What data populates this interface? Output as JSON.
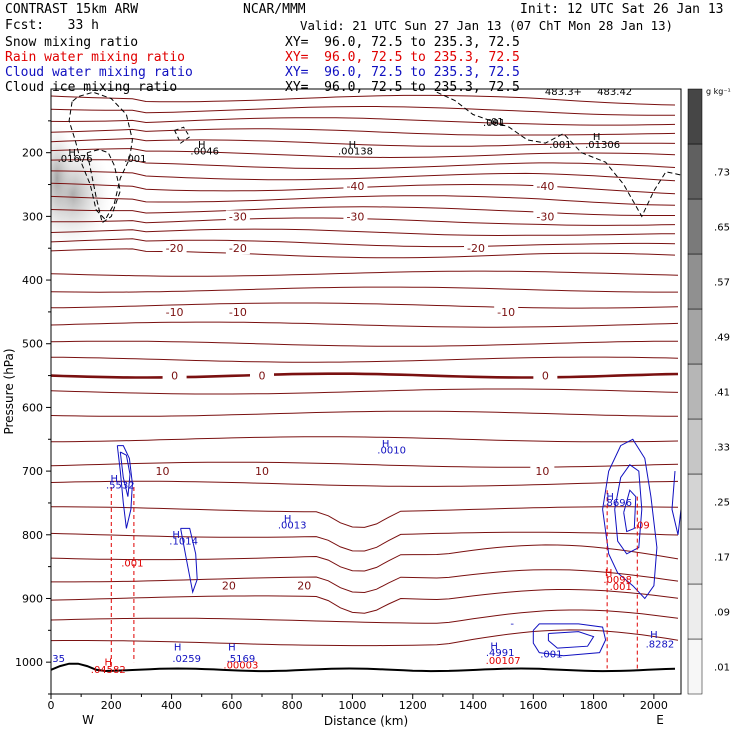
{
  "header": {
    "model": "CONTRAST 15km ARW",
    "forecast": "Fcst:   33 h",
    "center": "NCAR/MMM",
    "init": "Init: 12 UTC Sat 26 Jan 13",
    "valid": "Valid: 21 UTC Sun 27 Jan 13 (07 ChT Mon 28 Jan 13)",
    "fields": [
      {
        "label": "Snow mixing ratio",
        "xy": "XY=  96.0, 72.5 to 235.3, 72.5",
        "color": "#000000"
      },
      {
        "label": "Rain water mixing ratio",
        "xy": "XY=  96.0, 72.5 to 235.3, 72.5",
        "color": "#e00000"
      },
      {
        "label": "Cloud water mixing ratio",
        "xy": "XY=  96.0, 72.5 to 235.3, 72.5",
        "color": "#1010c0"
      },
      {
        "label": "Cloud ice mixing ratio",
        "xy": "XY=  96.0, 72.5 to 235.3, 72.5",
        "color": "#000000"
      }
    ]
  },
  "chart_data": {
    "type": "cross-section contour",
    "xlabel": "Distance (km)",
    "ylabel": "Pressure (hPa)",
    "xlim": [
      0,
      2090
    ],
    "ylim": [
      1050,
      100
    ],
    "x_ticks": [
      0,
      200,
      400,
      600,
      800,
      1000,
      1200,
      1400,
      1600,
      1800,
      2000
    ],
    "y_ticks": [
      200,
      300,
      400,
      500,
      600,
      700,
      800,
      900,
      1000
    ],
    "endpoints": {
      "left": "W",
      "right": "E"
    },
    "colorbar": {
      "unit": "g kg⁻¹",
      "ticks": [
        ".01",
        ".09",
        ".17",
        ".25",
        ".33",
        ".41",
        ".49",
        ".57",
        ".65",
        ".73"
      ],
      "colors": [
        "#f7f7f7",
        "#ededed",
        "#e1e1e1",
        "#d4d4d4",
        "#c6c6c6",
        "#b6b6b6",
        "#a4a4a4",
        "#909090",
        "#7a7a7a",
        "#606060",
        "#464646"
      ]
    },
    "temperature_contours": [
      {
        "label": "-40",
        "positions": [
          [
            1010,
            252
          ],
          [
            1640,
            252
          ]
        ]
      },
      {
        "label": "-30",
        "positions": [
          [
            620,
            300
          ],
          [
            1010,
            300
          ],
          [
            1640,
            300
          ]
        ]
      },
      {
        "label": "-20",
        "positions": [
          [
            410,
            350
          ],
          [
            620,
            350
          ],
          [
            1410,
            350
          ]
        ]
      },
      {
        "label": "-10",
        "positions": [
          [
            410,
            450
          ],
          [
            620,
            450
          ],
          [
            1510,
            450
          ]
        ]
      },
      {
        "label": "0",
        "positions": [
          [
            410,
            550
          ],
          [
            700,
            550
          ],
          [
            1640,
            550
          ]
        ]
      },
      {
        "label": "10",
        "positions": [
          [
            370,
            700
          ],
          [
            700,
            700
          ],
          [
            1630,
            700
          ]
        ]
      },
      {
        "label": "20",
        "positions": [
          [
            590,
            880
          ],
          [
            840,
            880
          ]
        ]
      }
    ],
    "annotations": [
      {
        "text": "H",
        "x": 70,
        "p": 205,
        "color": "#000000"
      },
      {
        "text": ".01676",
        "x": 80,
        "p": 215,
        "color": "#000000"
      },
      {
        "text": ".001",
        "x": 280,
        "p": 215,
        "color": "#000000"
      },
      {
        "text": "H",
        "x": 500,
        "p": 193,
        "color": "#000000"
      },
      {
        "text": ".0046",
        "x": 510,
        "p": 203,
        "color": "#000000"
      },
      {
        "text": "H",
        "x": 1000,
        "p": 193,
        "color": "#000000"
      },
      {
        "text": ".00138",
        "x": 1010,
        "p": 203,
        "color": "#000000"
      },
      {
        "text": "H",
        "x": 1810,
        "p": 180,
        "color": "#000000"
      },
      {
        "text": ".01306",
        "x": 1830,
        "p": 193,
        "color": "#000000"
      },
      {
        "text": ".001",
        "x": 1470,
        "p": 158,
        "color": "#000000"
      },
      {
        "text": ".001",
        "x": 1690,
        "p": 193,
        "color": "#000000"
      },
      {
        "text": "H",
        "x": 1110,
        "p": 662,
        "color": "#1010c0"
      },
      {
        "text": ".0010",
        "x": 1130,
        "p": 672,
        "color": "#1010c0"
      },
      {
        "text": "H",
        "x": 210,
        "p": 717,
        "color": "#1010c0"
      },
      {
        "text": ".5532",
        "x": 230,
        "p": 727,
        "color": "#1010c0"
      },
      {
        "text": "H",
        "x": 785,
        "p": 780,
        "color": "#1010c0"
      },
      {
        "text": ".0013",
        "x": 800,
        "p": 790,
        "color": "#1010c0"
      },
      {
        "text": "H",
        "x": 415,
        "p": 805,
        "color": "#1010c0"
      },
      {
        "text": ".1014",
        "x": 440,
        "p": 815,
        "color": "#1010c0"
      },
      {
        "text": "H",
        "x": 1855,
        "p": 745,
        "color": "#1010c0"
      },
      {
        "text": ".8696",
        "x": 1880,
        "p": 755,
        "color": "#1010c0"
      },
      {
        "text": "H",
        "x": 1850,
        "p": 865,
        "color": "#e00000"
      },
      {
        "text": ".0098",
        "x": 1880,
        "p": 876,
        "color": "#e00000"
      },
      {
        "text": ".001",
        "x": 1890,
        "p": 887,
        "color": "#e00000"
      },
      {
        "text": ".001",
        "x": 270,
        "p": 850,
        "color": "#e00000"
      },
      {
        "text": ".09",
        "x": 1960,
        "p": 790,
        "color": "#e00000"
      },
      {
        "text": "H",
        "x": 1470,
        "p": 980,
        "color": "#1010c0"
      },
      {
        "text": ".4991",
        "x": 1490,
        "p": 990,
        "color": "#1010c0"
      },
      {
        "text": ".00107",
        "x": 1500,
        "p": 1003,
        "color": "#e00000"
      },
      {
        "text": ".001",
        "x": 1660,
        "p": 993,
        "color": "#1010c0"
      },
      {
        "text": "H",
        "x": 2000,
        "p": 962,
        "color": "#1010c0"
      },
      {
        "text": ".8282",
        "x": 2020,
        "p": 977,
        "color": "#1010c0"
      },
      {
        "text": "H",
        "x": 420,
        "p": 982,
        "color": "#1010c0"
      },
      {
        "text": ".0259",
        "x": 450,
        "p": 1000,
        "color": "#1010c0"
      },
      {
        "text": "H",
        "x": 600,
        "p": 982,
        "color": "#1010c0"
      },
      {
        "text": ".5169",
        "x": 630,
        "p": 1000,
        "color": "#1010c0"
      },
      {
        "text": ".00003",
        "x": 630,
        "p": 1010,
        "color": "#e00000"
      },
      {
        "text": "H",
        "x": 190,
        "p": 1005,
        "color": "#e00000"
      },
      {
        "text": ".04582",
        "x": 190,
        "p": 1017,
        "color": "#e00000"
      },
      {
        "text": ".35",
        "x": 20,
        "p": 1000,
        "color": "#1010c0"
      },
      {
        "text": "-",
        "x": 1530,
        "p": 945,
        "color": "#1010c0"
      }
    ],
    "top_labels": [
      ".01",
      "483.3+",
      "483.42"
    ]
  }
}
